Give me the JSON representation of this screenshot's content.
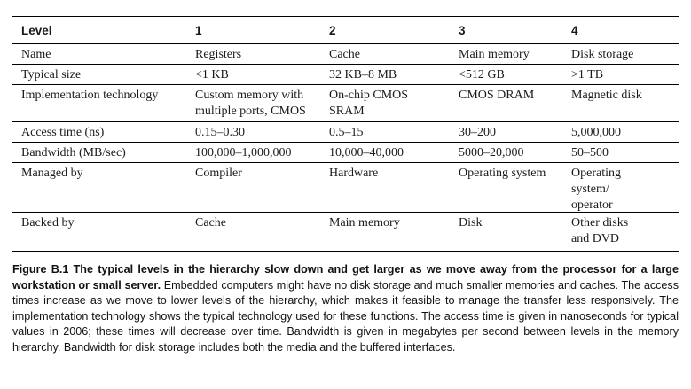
{
  "table": {
    "header": [
      "Level",
      "1",
      "2",
      "3",
      "4"
    ],
    "rows": [
      [
        "Name",
        "Registers",
        "Cache",
        "Main memory",
        "Disk storage"
      ],
      [
        "Typical size",
        "<1 KB",
        "32 KB–8 MB",
        "<512 GB",
        ">1 TB"
      ],
      [
        "Implementation technology",
        "Custom memory with\nmultiple ports, CMOS",
        "On-chip CMOS\nSRAM",
        "CMOS DRAM",
        "Magnetic disk"
      ],
      [
        "Access time (ns)",
        "0.15–0.30",
        "0.5–15",
        "30–200",
        "5,000,000"
      ],
      [
        "Bandwidth (MB/sec)",
        "100,000–1,000,000",
        "10,000–40,000",
        "5000–20,000",
        "50–500"
      ],
      [
        "Managed by",
        "Compiler",
        "Hardware",
        "Operating system",
        "Operating\nsystem/\noperator"
      ],
      [
        "Backed by",
        "Cache",
        "Main memory",
        "Disk",
        "Other disks\nand DVD"
      ]
    ]
  },
  "caption": {
    "label": "Figure B.1",
    "title": "The typical levels in the hierarchy slow down and get larger as we move away from the processor for a large workstation or small server.",
    "body": "Embedded computers might have no disk storage and much smaller memories and caches. The access times increase as we move to lower levels of the hierarchy, which makes it feasible to manage the transfer less responsively. The implementation technology shows the typical technology used for these functions. The access time is given in nanoseconds for typical values in 2006; these times will decrease over time. Bandwidth is given in megabytes per second between levels in the memory hierarchy. Bandwidth for disk storage includes both the media and the buffered interfaces."
  }
}
